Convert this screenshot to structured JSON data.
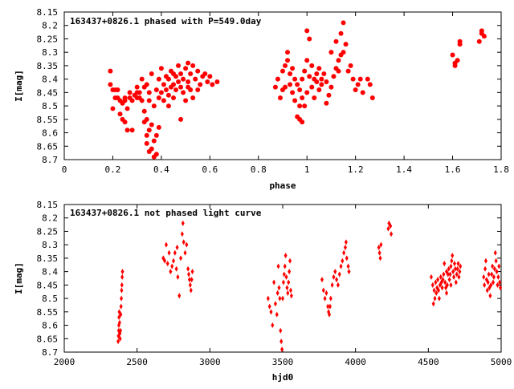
{
  "chart_data": [
    {
      "type": "scatter",
      "title": "163437+0826.1 phased with P=549.0day",
      "xlabel": "phase",
      "ylabel": "I[mag]",
      "xlim": [
        0,
        1.8
      ],
      "ylim": [
        8.15,
        8.7
      ],
      "y_inverted": true,
      "xticks": [
        "0",
        "0.2",
        "0.4",
        "0.6",
        "0.8",
        "1",
        "1.2",
        "1.4",
        "1.6",
        "1.8"
      ],
      "xtick_values": [
        0,
        0.2,
        0.4,
        0.6,
        0.8,
        1.0,
        1.2,
        1.4,
        1.6,
        1.8
      ],
      "yticks": [
        "8.15",
        "8.2",
        "8.25",
        "8.3",
        "8.35",
        "8.4",
        "8.45",
        "8.5",
        "8.55",
        "8.6",
        "8.65",
        "8.7"
      ],
      "ytick_values": [
        8.15,
        8.2,
        8.25,
        8.3,
        8.35,
        8.4,
        8.45,
        8.5,
        8.55,
        8.6,
        8.65,
        8.7
      ],
      "grid": false,
      "marker": "filled-circle",
      "color": "#ff0000",
      "points": [
        [
          0.19,
          8.37
        ],
        [
          0.19,
          8.42
        ],
        [
          0.2,
          8.51
        ],
        [
          0.2,
          8.44
        ],
        [
          0.21,
          8.47
        ],
        [
          0.22,
          8.44
        ],
        [
          0.22,
          8.47
        ],
        [
          0.23,
          8.48
        ],
        [
          0.23,
          8.53
        ],
        [
          0.24,
          8.55
        ],
        [
          0.24,
          8.49
        ],
        [
          0.25,
          8.47
        ],
        [
          0.25,
          8.56
        ],
        [
          0.26,
          8.59
        ],
        [
          0.26,
          8.51
        ],
        [
          0.27,
          8.45
        ],
        [
          0.27,
          8.47
        ],
        [
          0.28,
          8.59
        ],
        [
          0.28,
          8.48
        ],
        [
          0.29,
          8.46
        ],
        [
          0.3,
          8.47
        ],
        [
          0.3,
          8.43
        ],
        [
          0.31,
          8.45
        ],
        [
          0.31,
          8.47
        ],
        [
          0.32,
          8.4
        ],
        [
          0.32,
          8.48
        ],
        [
          0.33,
          8.43
        ],
        [
          0.33,
          8.52
        ],
        [
          0.33,
          8.56
        ],
        [
          0.34,
          8.42
        ],
        [
          0.34,
          8.55
        ],
        [
          0.34,
          8.61
        ],
        [
          0.34,
          8.64
        ],
        [
          0.35,
          8.67
        ],
        [
          0.35,
          8.59
        ],
        [
          0.35,
          8.45
        ],
        [
          0.36,
          8.38
        ],
        [
          0.36,
          8.57
        ],
        [
          0.36,
          8.66
        ],
        [
          0.37,
          8.69
        ],
        [
          0.37,
          8.63
        ],
        [
          0.37,
          8.5
        ],
        [
          0.38,
          8.44
        ],
        [
          0.38,
          8.61
        ],
        [
          0.38,
          8.68
        ],
        [
          0.39,
          8.58
        ],
        [
          0.39,
          8.47
        ],
        [
          0.39,
          8.4
        ],
        [
          0.4,
          8.36
        ],
        [
          0.4,
          8.45
        ],
        [
          0.41,
          8.42
        ],
        [
          0.41,
          8.48
        ],
        [
          0.42,
          8.39
        ],
        [
          0.42,
          8.44
        ],
        [
          0.43,
          8.46
        ],
        [
          0.43,
          8.4
        ],
        [
          0.44,
          8.37
        ],
        [
          0.44,
          8.43
        ],
        [
          0.45,
          8.42
        ],
        [
          0.45,
          8.47
        ],
        [
          0.46,
          8.39
        ],
        [
          0.46,
          8.44
        ],
        [
          0.47,
          8.41
        ],
        [
          0.47,
          8.35
        ],
        [
          0.48,
          8.38
        ],
        [
          0.48,
          8.43
        ],
        [
          0.49,
          8.45
        ],
        [
          0.49,
          8.4
        ],
        [
          0.5,
          8.36
        ],
        [
          0.5,
          8.48
        ],
        [
          0.51,
          8.34
        ],
        [
          0.51,
          8.41
        ],
        [
          0.52,
          8.38
        ],
        [
          0.52,
          8.44
        ],
        [
          0.53,
          8.35
        ],
        [
          0.53,
          8.47
        ],
        [
          0.54,
          8.4
        ],
        [
          0.55,
          8.37
        ],
        [
          0.55,
          8.44
        ],
        [
          0.56,
          8.42
        ],
        [
          0.57,
          8.39
        ],
        [
          0.58,
          8.38
        ],
        [
          0.59,
          8.41
        ],
        [
          0.6,
          8.39
        ],
        [
          0.61,
          8.42
        ],
        [
          0.63,
          8.41
        ],
        [
          0.48,
          8.55
        ],
        [
          0.3,
          8.45
        ],
        [
          0.21,
          8.44
        ],
        [
          0.25,
          8.48
        ],
        [
          0.35,
          8.48
        ],
        [
          0.43,
          8.5
        ],
        [
          0.45,
          8.38
        ],
        [
          0.51,
          8.43
        ],
        [
          0.87,
          8.43
        ],
        [
          0.88,
          8.4
        ],
        [
          0.89,
          8.47
        ],
        [
          0.9,
          8.44
        ],
        [
          0.9,
          8.37
        ],
        [
          0.91,
          8.35
        ],
        [
          0.91,
          8.43
        ],
        [
          0.92,
          8.3
        ],
        [
          0.93,
          8.42
        ],
        [
          0.93,
          8.38
        ],
        [
          0.94,
          8.45
        ],
        [
          0.95,
          8.4
        ],
        [
          0.95,
          8.48
        ],
        [
          0.96,
          8.42
        ],
        [
          0.96,
          8.54
        ],
        [
          0.97,
          8.5
        ],
        [
          0.97,
          8.55
        ],
        [
          0.97,
          8.44
        ],
        [
          0.98,
          8.56
        ],
        [
          0.98,
          8.47
        ],
        [
          0.98,
          8.4
        ],
        [
          0.99,
          8.37
        ],
        [
          0.99,
          8.5
        ],
        [
          1.0,
          8.45
        ],
        [
          1.0,
          8.33
        ],
        [
          1.0,
          8.22
        ],
        [
          1.01,
          8.25
        ],
        [
          1.01,
          8.39
        ],
        [
          1.02,
          8.43
        ],
        [
          1.02,
          8.35
        ],
        [
          1.03,
          8.4
        ],
        [
          1.03,
          8.47
        ],
        [
          1.04,
          8.41
        ],
        [
          1.04,
          8.38
        ],
        [
          1.05,
          8.44
        ],
        [
          1.05,
          8.36
        ],
        [
          1.06,
          8.42
        ],
        [
          1.06,
          8.4
        ],
        [
          1.07,
          8.38
        ],
        [
          1.08,
          8.49
        ],
        [
          1.09,
          8.46
        ],
        [
          1.1,
          8.43
        ],
        [
          1.1,
          8.3
        ],
        [
          1.11,
          8.39
        ],
        [
          1.12,
          8.36
        ],
        [
          1.12,
          8.26
        ],
        [
          1.13,
          8.33
        ],
        [
          1.14,
          8.31
        ],
        [
          1.14,
          8.23
        ],
        [
          1.15,
          8.19
        ],
        [
          1.15,
          8.3
        ],
        [
          1.16,
          8.27
        ],
        [
          1.17,
          8.37
        ],
        [
          1.18,
          8.35
        ],
        [
          1.19,
          8.4
        ],
        [
          1.2,
          8.44
        ],
        [
          1.21,
          8.42
        ],
        [
          1.22,
          8.4
        ],
        [
          1.23,
          8.45
        ],
        [
          1.25,
          8.4
        ],
        [
          1.26,
          8.42
        ],
        [
          1.27,
          8.47
        ],
        [
          0.94,
          8.36
        ],
        [
          0.92,
          8.33
        ],
        [
          1.08,
          8.41
        ],
        [
          1.13,
          8.37
        ],
        [
          1.6,
          8.31
        ],
        [
          1.61,
          8.34
        ],
        [
          1.61,
          8.35
        ],
        [
          1.62,
          8.33
        ],
        [
          1.63,
          8.27
        ],
        [
          1.63,
          8.26
        ],
        [
          1.71,
          8.26
        ],
        [
          1.72,
          8.23
        ],
        [
          1.72,
          8.22
        ],
        [
          1.73,
          8.24
        ]
      ]
    },
    {
      "type": "scatter",
      "title": "163437+0826.1 not phased light curve",
      "xlabel": "hjd0",
      "ylabel": "I[mag]",
      "xlim": [
        2000,
        5000
      ],
      "ylim": [
        8.15,
        8.7
      ],
      "y_inverted": true,
      "xticks": [
        "2000",
        "2500",
        "3000",
        "3500",
        "4000",
        "4500",
        "5000"
      ],
      "xtick_values": [
        2000,
        2500,
        3000,
        3500,
        4000,
        4500,
        5000
      ],
      "yticks": [
        "8.15",
        "8.2",
        "8.25",
        "8.3",
        "8.35",
        "8.4",
        "8.45",
        "8.5",
        "8.55",
        "8.6",
        "8.65",
        "8.7"
      ],
      "ytick_values": [
        8.15,
        8.2,
        8.25,
        8.3,
        8.35,
        8.4,
        8.45,
        8.5,
        8.55,
        8.6,
        8.65,
        8.7
      ],
      "grid": false,
      "marker": "filled-diamond",
      "color": "#ff0000",
      "points": [
        [
          2370,
          8.66
        ],
        [
          2372,
          8.64
        ],
        [
          2374,
          8.62
        ],
        [
          2375,
          8.6
        ],
        [
          2376,
          8.57
        ],
        [
          2378,
          8.55
        ],
        [
          2380,
          8.59
        ],
        [
          2382,
          8.63
        ],
        [
          2384,
          8.65
        ],
        [
          2386,
          8.62
        ],
        [
          2388,
          8.56
        ],
        [
          2390,
          8.53
        ],
        [
          2392,
          8.5
        ],
        [
          2394,
          8.47
        ],
        [
          2396,
          8.45
        ],
        [
          2398,
          8.42
        ],
        [
          2400,
          8.4
        ],
        [
          2680,
          8.35
        ],
        [
          2690,
          8.36
        ],
        [
          2700,
          8.3
        ],
        [
          2710,
          8.37
        ],
        [
          2720,
          8.33
        ],
        [
          2730,
          8.4
        ],
        [
          2740,
          8.38
        ],
        [
          2750,
          8.36
        ],
        [
          2760,
          8.33
        ],
        [
          2770,
          8.39
        ],
        [
          2775,
          8.31
        ],
        [
          2780,
          8.42
        ],
        [
          2790,
          8.49
        ],
        [
          2800,
          8.35
        ],
        [
          2810,
          8.26
        ],
        [
          2815,
          8.22
        ],
        [
          2820,
          8.29
        ],
        [
          2830,
          8.33
        ],
        [
          2840,
          8.3
        ],
        [
          2850,
          8.39
        ],
        [
          2855,
          8.41
        ],
        [
          2860,
          8.43
        ],
        [
          2865,
          8.45
        ],
        [
          2870,
          8.47
        ],
        [
          2875,
          8.43
        ],
        [
          2880,
          8.4
        ],
        [
          3400,
          8.5
        ],
        [
          3410,
          8.53
        ],
        [
          3420,
          8.55
        ],
        [
          3430,
          8.6
        ],
        [
          3440,
          8.44
        ],
        [
          3450,
          8.52
        ],
        [
          3460,
          8.56
        ],
        [
          3465,
          8.48
        ],
        [
          3470,
          8.38
        ],
        [
          3475,
          8.46
        ],
        [
          3480,
          8.5
        ],
        [
          3485,
          8.62
        ],
        [
          3490,
          8.66
        ],
        [
          3495,
          8.69
        ],
        [
          3500,
          8.5
        ],
        [
          3505,
          8.44
        ],
        [
          3510,
          8.41
        ],
        [
          3515,
          8.38
        ],
        [
          3520,
          8.34
        ],
        [
          3525,
          8.42
        ],
        [
          3530,
          8.46
        ],
        [
          3535,
          8.48
        ],
        [
          3540,
          8.44
        ],
        [
          3545,
          8.4
        ],
        [
          3550,
          8.36
        ],
        [
          3555,
          8.47
        ],
        [
          3560,
          8.49
        ],
        [
          3770,
          8.43
        ],
        [
          3780,
          8.47
        ],
        [
          3790,
          8.5
        ],
        [
          3800,
          8.48
        ],
        [
          3810,
          8.53
        ],
        [
          3815,
          8.55
        ],
        [
          3820,
          8.56
        ],
        [
          3825,
          8.53
        ],
        [
          3830,
          8.5
        ],
        [
          3840,
          8.45
        ],
        [
          3850,
          8.42
        ],
        [
          3860,
          8.4
        ],
        [
          3870,
          8.43
        ],
        [
          3880,
          8.45
        ],
        [
          3890,
          8.41
        ],
        [
          3900,
          8.38
        ],
        [
          3910,
          8.36
        ],
        [
          3920,
          8.33
        ],
        [
          3930,
          8.31
        ],
        [
          3935,
          8.29
        ],
        [
          3940,
          8.35
        ],
        [
          3950,
          8.38
        ],
        [
          3955,
          8.4
        ],
        [
          4160,
          8.31
        ],
        [
          4165,
          8.33
        ],
        [
          4170,
          8.35
        ],
        [
          4175,
          8.3
        ],
        [
          4225,
          8.24
        ],
        [
          4230,
          8.22
        ],
        [
          4240,
          8.23
        ],
        [
          4245,
          8.26
        ],
        [
          4520,
          8.42
        ],
        [
          4530,
          8.45
        ],
        [
          4540,
          8.47
        ],
        [
          4545,
          8.5
        ],
        [
          4550,
          8.44
        ],
        [
          4555,
          8.48
        ],
        [
          4560,
          8.46
        ],
        [
          4565,
          8.43
        ],
        [
          4570,
          8.47
        ],
        [
          4575,
          8.5
        ],
        [
          4580,
          8.45
        ],
        [
          4585,
          8.42
        ],
        [
          4590,
          8.44
        ],
        [
          4595,
          8.46
        ],
        [
          4600,
          8.43
        ],
        [
          4605,
          8.41
        ],
        [
          4610,
          8.37
        ],
        [
          4615,
          8.44
        ],
        [
          4620,
          8.46
        ],
        [
          4625,
          8.48
        ],
        [
          4630,
          8.45
        ],
        [
          4635,
          8.41
        ],
        [
          4640,
          8.39
        ],
        [
          4645,
          8.43
        ],
        [
          4650,
          8.41
        ],
        [
          4655,
          8.38
        ],
        [
          4660,
          8.36
        ],
        [
          4665,
          8.34
        ],
        [
          4670,
          8.4
        ],
        [
          4675,
          8.42
        ],
        [
          4680,
          8.37
        ],
        [
          4685,
          8.39
        ],
        [
          4690,
          8.44
        ],
        [
          4695,
          8.41
        ],
        [
          4700,
          8.39
        ],
        [
          4705,
          8.37
        ],
        [
          4710,
          8.42
        ],
        [
          4715,
          8.4
        ],
        [
          4720,
          8.38
        ],
        [
          4535,
          8.52
        ],
        [
          4625,
          8.4
        ],
        [
          4655,
          8.45
        ],
        [
          4880,
          8.42
        ],
        [
          4885,
          8.45
        ],
        [
          4890,
          8.39
        ],
        [
          4895,
          8.36
        ],
        [
          4900,
          8.43
        ],
        [
          4905,
          8.47
        ],
        [
          4910,
          8.44
        ],
        [
          4915,
          8.41
        ],
        [
          4920,
          8.46
        ],
        [
          4925,
          8.49
        ],
        [
          4930,
          8.45
        ],
        [
          4935,
          8.41
        ],
        [
          4940,
          8.38
        ],
        [
          4945,
          8.44
        ],
        [
          4950,
          8.42
        ],
        [
          4955,
          8.39
        ],
        [
          4960,
          8.33
        ],
        [
          4965,
          8.36
        ],
        [
          4970,
          8.4
        ],
        [
          4975,
          8.45
        ],
        [
          4980,
          8.42
        ],
        [
          4985,
          8.38
        ],
        [
          4990,
          8.44
        ],
        [
          4995,
          8.46
        ]
      ]
    }
  ]
}
